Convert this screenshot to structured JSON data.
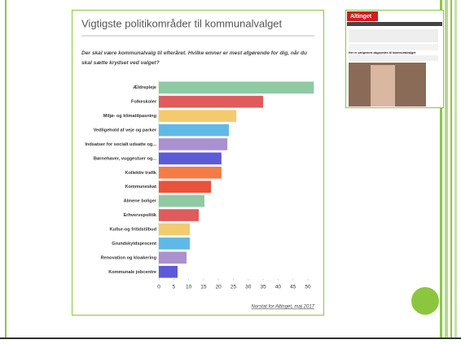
{
  "chart_data": {
    "type": "barh",
    "title": "Vigtigste politikområder til kommunalvalget",
    "subtitle": [
      "Der skal være kommunalvalg til efteråret. Hvilke emner er mest afgørende for dig, når du",
      "skal sætte krydset ved valget?"
    ],
    "categories": [
      "Ældrepleje",
      "Folkeskoler",
      "Miljø- og klimatilpasning",
      "Vedligehold af veje og parker",
      "Indsatser for socialt udsatte og...",
      "Børnehaver, vuggestuer og...",
      "Kollektiv trafik",
      "Kommuneskat",
      "Almene boliger",
      "Erhvervspolitik",
      "Kultur-og fritidstilbud",
      "Grundskyldsprocent",
      "Renovation og kloakering",
      "Kommunale jobcentre"
    ],
    "values": [
      52,
      35,
      26,
      23.5,
      23,
      21,
      21,
      17.5,
      15.3,
      13.4,
      10.4,
      10.4,
      9.3,
      6.3
    ],
    "colors": [
      "#8fcaa3",
      "#e05b5b",
      "#f3ca6e",
      "#5fb9e6",
      "#aa91cf",
      "#5c5ad8",
      "#f67b46",
      "#e9523b",
      "#8fcaa3",
      "#e05b5b",
      "#f3ca6e",
      "#5fb9e6",
      "#aa91cf",
      "#5c5ad8"
    ],
    "xlim": [
      0,
      52
    ],
    "xticks": [
      0,
      5,
      10,
      15,
      20,
      25,
      30,
      35,
      40,
      45,
      50
    ],
    "source": "Norstat for Altinget, maj 2017"
  },
  "thumbnail": {
    "brand": "Altinget",
    "headline": "Her er vælgernes dagsorden til kommunalvalget"
  }
}
